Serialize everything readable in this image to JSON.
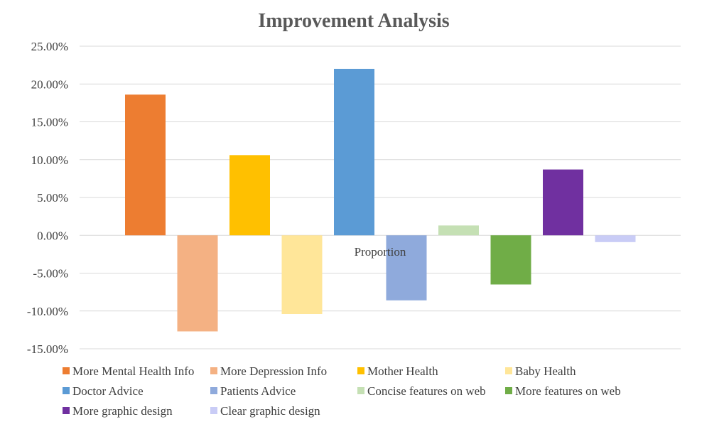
{
  "chart_data": {
    "type": "bar",
    "title": "Improvement Analysis",
    "xlabel": "Proportion",
    "ylabel": "",
    "ylim": [
      -0.15,
      0.25
    ],
    "ytick_step": 0.05,
    "yticks": [
      "25.00%",
      "20.00%",
      "15.00%",
      "10.00%",
      "5.00%",
      "0.00%",
      "-5.00%",
      "-10.00%",
      "-15.00%"
    ],
    "grid": true,
    "legend_position": "bottom",
    "categories": [
      "Proportion"
    ],
    "series": [
      {
        "name": "More Mental Health Info",
        "values": [
          0.186
        ],
        "color": "#ED7D31"
      },
      {
        "name": "More Depression Info",
        "values": [
          -0.127
        ],
        "color": "#F4B183"
      },
      {
        "name": "Mother Health",
        "values": [
          0.106
        ],
        "color": "#FFC000"
      },
      {
        "name": "Baby Health",
        "values": [
          -0.104
        ],
        "color": "#FFE699"
      },
      {
        "name": "Doctor Advice",
        "values": [
          0.22
        ],
        "color": "#5B9BD5"
      },
      {
        "name": "Patients Advice",
        "values": [
          -0.086
        ],
        "color": "#8FAADC"
      },
      {
        "name": "Concise features on web",
        "values": [
          0.013
        ],
        "color": "#C5E0B4"
      },
      {
        "name": "More features on web",
        "values": [
          -0.065
        ],
        "color": "#70AD47"
      },
      {
        "name": "More graphic design",
        "values": [
          0.087
        ],
        "color": "#7030A0"
      },
      {
        "name": "Clear graphic design",
        "values": [
          -0.009
        ],
        "color": "#C9CCF6"
      }
    ]
  }
}
